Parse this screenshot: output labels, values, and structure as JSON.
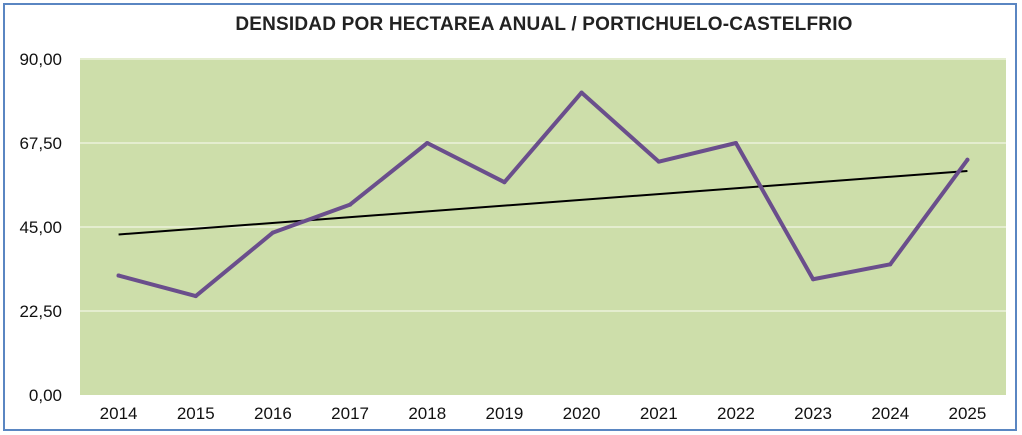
{
  "chart_data": {
    "type": "line",
    "title": "DENSIDAD POR HECTAREA ANUAL / PORTICHUELO-CASTELFRIO",
    "xlabel": "",
    "ylabel": "",
    "categories": [
      "2014",
      "2015",
      "2016",
      "2017",
      "2018",
      "2019",
      "2020",
      "2021",
      "2022",
      "2023",
      "2024",
      "2025"
    ],
    "series": [
      {
        "values": [
          32.0,
          26.5,
          43.5,
          51.0,
          67.5,
          57.0,
          81.0,
          62.5,
          67.5,
          31.0,
          35.0,
          63.0
        ]
      }
    ],
    "trendline": {
      "type": "linear",
      "start": 43.0,
      "end": 60.0
    },
    "ylim": [
      0,
      90
    ],
    "yticks": [
      "0,00",
      "22,50",
      "45,00",
      "67,50",
      "90,00"
    ],
    "grid": true,
    "legend": "none",
    "colors": {
      "plot_background": "#cddeaa",
      "series_line": "#6a4e8c",
      "trendline": "#000000",
      "gridline": "#e4edcf",
      "frame_border": "#5a86c2"
    }
  }
}
